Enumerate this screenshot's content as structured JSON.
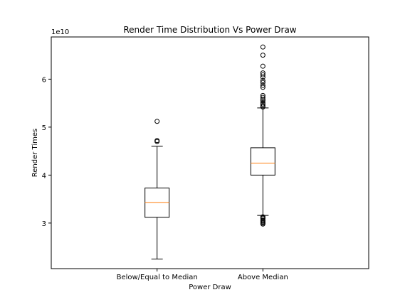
{
  "chart_data": {
    "type": "box",
    "title": "Render Time Distribution Vs Power Draw",
    "xlabel": "Power Draw",
    "ylabel": "Render Times",
    "y_offset_label": "1e10",
    "y_scale": 10000000000,
    "ylim": [
      20500000000,
      68800000000
    ],
    "y_ticks": [
      30000000000,
      40000000000,
      50000000000,
      60000000000
    ],
    "y_tick_labels": [
      "3",
      "4",
      "5",
      "6"
    ],
    "grid": false,
    "legend": "none",
    "colors": {
      "box": "#000000",
      "median": "#ff7f0e",
      "flier": "#000000"
    },
    "categories": [
      "Below/Equal to Median",
      "Above Median"
    ],
    "boxes": [
      {
        "label": "Below/Equal to Median",
        "whisker_low": 22500000000,
        "q1": 31200000000,
        "median": 34300000000,
        "q3": 37300000000,
        "whisker_high": 46000000000,
        "fliers": [
          47000000000,
          47200000000,
          51200000000
        ]
      },
      {
        "label": "Above Median",
        "whisker_low": 31600000000,
        "q1": 40000000000,
        "median": 42500000000,
        "q3": 45700000000,
        "whisker_high": 54000000000,
        "fliers": [
          29800000000,
          30000000000,
          30200000000,
          30400000000,
          30600000000,
          30900000000,
          31100000000,
          31300000000,
          54200000000,
          54500000000,
          54800000000,
          55100000000,
          55500000000,
          55800000000,
          56200000000,
          56600000000,
          58300000000,
          58700000000,
          59300000000,
          59700000000,
          60400000000,
          60900000000,
          61300000000,
          62700000000,
          65000000000,
          66700000000
        ]
      }
    ]
  }
}
